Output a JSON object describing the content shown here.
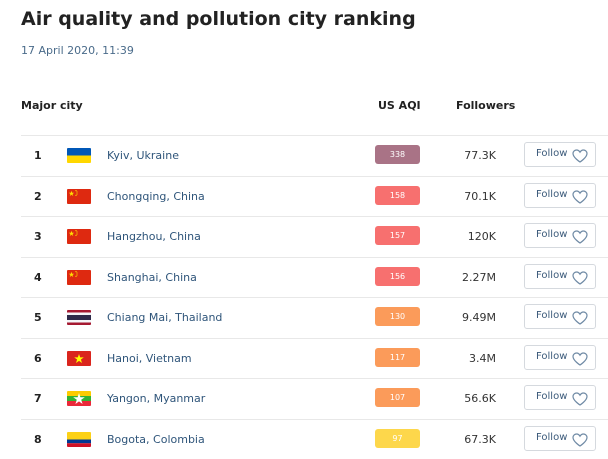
{
  "page": {
    "title": "Air quality and pollution city ranking",
    "timestamp": "17 April 2020, 11:39"
  },
  "table": {
    "headers": {
      "city": "Major city",
      "aqi": "US AQI",
      "followers": "Followers"
    },
    "follow_label": "Follow",
    "rows": [
      {
        "rank": "1",
        "city": "Kyiv, Ukraine",
        "aqi": "338",
        "aqi_color": "#a97386",
        "followers": "77.3K",
        "flag": "ukraine"
      },
      {
        "rank": "2",
        "city": "Chongqing, China",
        "aqi": "158",
        "aqi_color": "#f7706f",
        "followers": "70.1K",
        "flag": "china"
      },
      {
        "rank": "3",
        "city": "Hangzhou, China",
        "aqi": "157",
        "aqi_color": "#f7706f",
        "followers": "120K",
        "flag": "china"
      },
      {
        "rank": "4",
        "city": "Shanghai, China",
        "aqi": "156",
        "aqi_color": "#f7706f",
        "followers": "2.27M",
        "flag": "china"
      },
      {
        "rank": "5",
        "city": "Chiang Mai, Thailand",
        "aqi": "130",
        "aqi_color": "#fb9b5a",
        "followers": "9.49M",
        "flag": "thailand"
      },
      {
        "rank": "6",
        "city": "Hanoi, Vietnam",
        "aqi": "117",
        "aqi_color": "#fb9b5a",
        "followers": "3.4M",
        "flag": "vietnam"
      },
      {
        "rank": "7",
        "city": "Yangon, Myanmar",
        "aqi": "107",
        "aqi_color": "#fb9b5a",
        "followers": "56.6K",
        "flag": "myanmar"
      },
      {
        "rank": "8",
        "city": "Bogota, Colombia",
        "aqi": "97",
        "aqi_color": "#fdd74b",
        "followers": "67.3K",
        "flag": "colombia"
      }
    ]
  }
}
